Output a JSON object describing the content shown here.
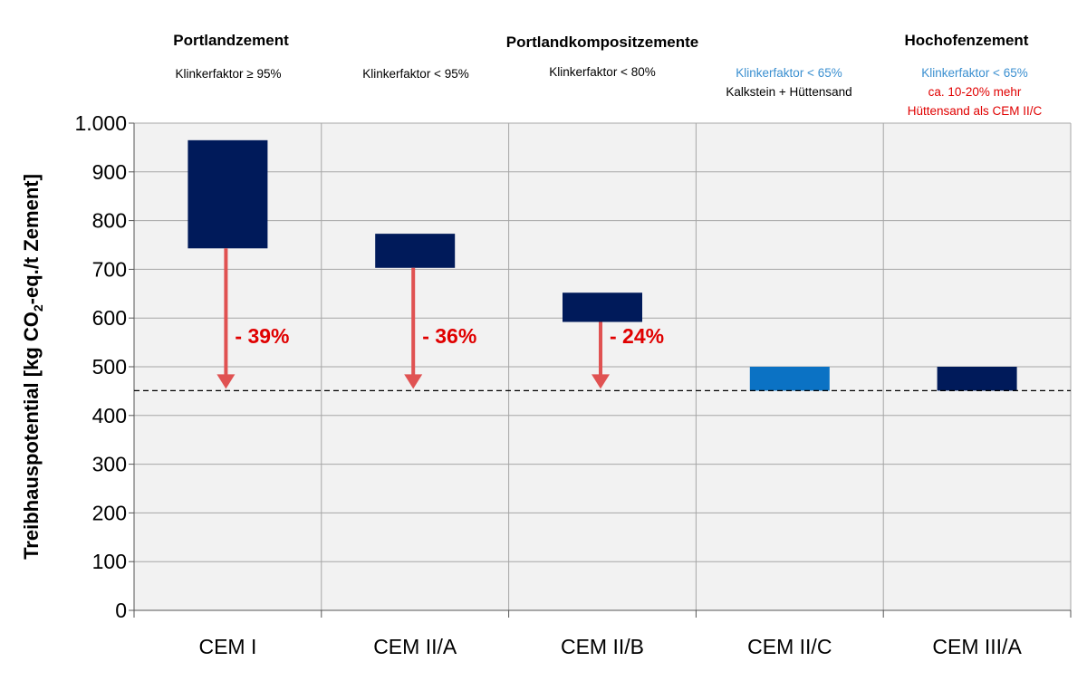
{
  "colors": {
    "plot_bg": "#f2f2f2",
    "grid": "#a6a6a6",
    "bar_dark": "#001a5a",
    "bar_light": "#0b72c4",
    "arrow": "#e05252",
    "red_text": "#e00000",
    "blue_text": "#3a8fd0"
  },
  "headers": {
    "group1_title": "Portlandzement",
    "group2_title": "Portlandkompositzemente",
    "group3_title": "Hochofenzement",
    "col1_sub": "Klinkerfaktor ≥ 95%",
    "col2_sub": "Klinkerfaktor < 95%",
    "col3_sub": "Klinkerfaktor < 80%",
    "col4_sub1": "Klinkerfaktor < 65%",
    "col4_sub2": "Kalkstein + Hüttensand",
    "col5_sub1": "Klinkerfaktor < 65%",
    "col5_sub2": "ca. 10-20% mehr",
    "col5_sub3": "Hüttensand als CEM II/C"
  },
  "chart_data": {
    "type": "bar",
    "ylabel_pre": "Treibhauspotential [kg CO",
    "ylabel_sub": "2",
    "ylabel_post": "-eq./t Zement]",
    "ylim": [
      0,
      1000
    ],
    "yticks": [
      0,
      100,
      200,
      300,
      400,
      500,
      600,
      700,
      800,
      900,
      1000
    ],
    "ytick_labels": [
      "0",
      "100",
      "200",
      "300",
      "400",
      "500",
      "600",
      "700",
      "800",
      "900",
      "1.000"
    ],
    "categories": [
      "CEM I",
      "CEM II/A",
      "CEM II/B",
      "CEM II/C",
      "CEM III/A"
    ],
    "ranges": [
      {
        "low": 743,
        "high": 965,
        "color": "dark"
      },
      {
        "low": 703,
        "high": 773,
        "color": "dark"
      },
      {
        "low": 592,
        "high": 652,
        "color": "dark"
      },
      {
        "low": 451,
        "high": 500,
        "color": "light"
      },
      {
        "low": 451,
        "high": 500,
        "color": "dark"
      }
    ],
    "reference_line": 451,
    "reductions": [
      {
        "category": "CEM I",
        "from": 743,
        "to": 451,
        "label": "- 39%"
      },
      {
        "category": "CEM II/A",
        "from": 703,
        "to": 451,
        "label": "- 36%"
      },
      {
        "category": "CEM II/B",
        "from": 592,
        "to": 451,
        "label": "- 24%"
      }
    ],
    "grid": true
  }
}
